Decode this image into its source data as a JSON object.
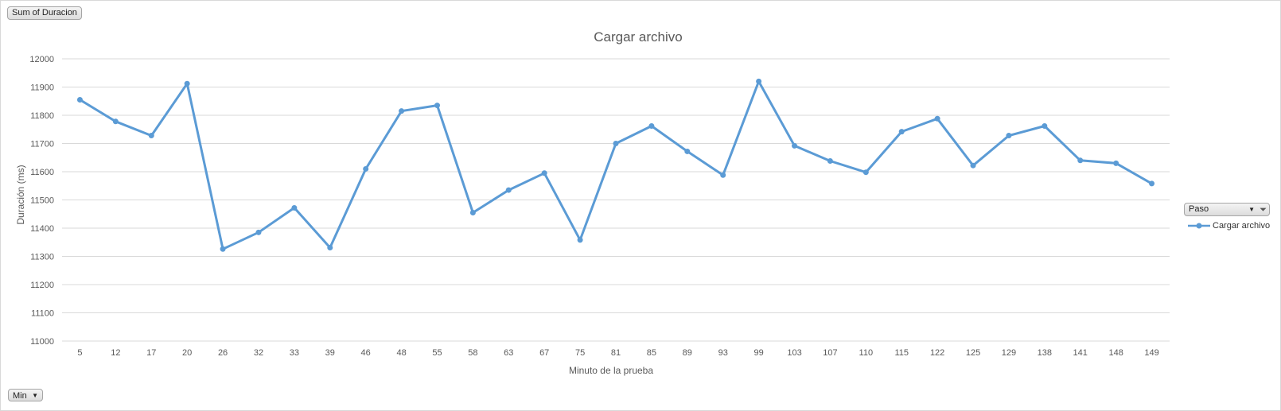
{
  "pivot": {
    "value_field": "Sum of Duracion",
    "axis_field": "Min",
    "legend_field": "Paso"
  },
  "colors": {
    "series": "#5b9bd5",
    "grid": "#d9d9d9",
    "text": "#595959"
  },
  "chart_data": {
    "type": "line",
    "title": "Cargar archivo",
    "xlabel": "Minuto de la prueba",
    "ylabel": "Duración (ms)",
    "ylim": [
      11000,
      12000
    ],
    "ytick_step": 100,
    "grid": true,
    "legend_position": "right",
    "categories": [
      "5",
      "12",
      "17",
      "20",
      "26",
      "32",
      "33",
      "39",
      "46",
      "48",
      "55",
      "58",
      "63",
      "67",
      "75",
      "81",
      "85",
      "89",
      "93",
      "99",
      "103",
      "107",
      "110",
      "115",
      "122",
      "125",
      "129",
      "138",
      "141",
      "148",
      "149"
    ],
    "series": [
      {
        "name": "Cargar archivo",
        "values": [
          11855,
          11778,
          11728,
          11912,
          11326,
          11385,
          11472,
          11331,
          11610,
          11815,
          11835,
          11455,
          11535,
          11595,
          11358,
          11700,
          11762,
          11672,
          11588,
          11920,
          11692,
          11638,
          11598,
          11742,
          11788,
          11622,
          11728,
          11762,
          11640,
          11630,
          11558
        ]
      }
    ]
  }
}
